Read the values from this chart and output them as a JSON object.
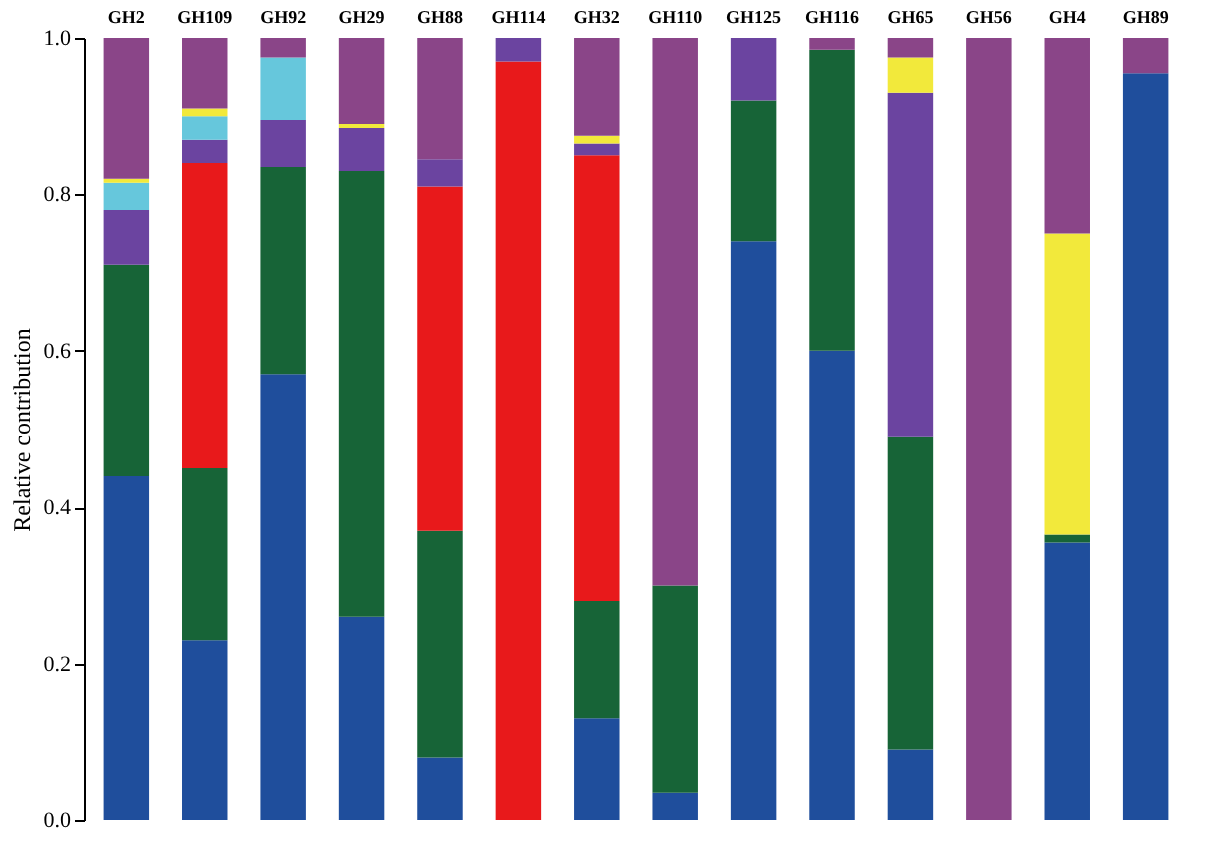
{
  "chart_data": {
    "type": "bar",
    "stacked": true,
    "ylabel": "Relative contribution",
    "categories": [
      "GH2",
      "GH109",
      "GH92",
      "GH29",
      "GH88",
      "GH114",
      "GH32",
      "GH110",
      "GH125",
      "GH116",
      "GH65",
      "GH56",
      "GH4",
      "GH89"
    ],
    "ylim": [
      0,
      1
    ],
    "yticks": [
      {
        "value": 0,
        "label": "0.0"
      },
      {
        "value": 0.2,
        "label": "0.2"
      },
      {
        "value": 0.4,
        "label": "0.4"
      },
      {
        "value": 0.6,
        "label": "0.6"
      },
      {
        "value": 0.8,
        "label": "0.8"
      },
      {
        "value": 1,
        "label": "1.0"
      }
    ],
    "grid": false,
    "series": [
      {
        "color": "#1f4e9c",
        "values": [
          0.44,
          0.23,
          0.57,
          0.26,
          0.08,
          0,
          0.13,
          0.035,
          0.74,
          0.6,
          0.09,
          0,
          0.355,
          0.955
        ]
      },
      {
        "color": "#176437",
        "values": [
          0.27,
          0.22,
          0.265,
          0.57,
          0.29,
          0,
          0.15,
          0.265,
          0.18,
          0.385,
          0.4,
          0,
          0.01,
          0
        ]
      },
      {
        "color": "#e8191b",
        "values": [
          0,
          0.39,
          0,
          0,
          0.44,
          0.97,
          0.57,
          0,
          0,
          0,
          0,
          0,
          0,
          0
        ]
      },
      {
        "color": "#6b44a0",
        "values": [
          0.07,
          0.03,
          0.06,
          0.055,
          0.035,
          0.03,
          0.015,
          0,
          0.08,
          0,
          0.44,
          0,
          0,
          0
        ]
      },
      {
        "color": "#66c7dc",
        "values": [
          0.035,
          0.03,
          0.08,
          0,
          0,
          0,
          0,
          0,
          0,
          0,
          0,
          0,
          0,
          0
        ]
      },
      {
        "color": "#f2e93b",
        "values": [
          0.005,
          0.01,
          0,
          0.005,
          0,
          0,
          0.01,
          0,
          0,
          0,
          0.045,
          0,
          0.385,
          0
        ]
      },
      {
        "color": "#8a4588",
        "values": [
          0.18,
          0.09,
          0.025,
          0.11,
          0.155,
          0,
          0.125,
          0.7,
          0,
          0.015,
          0.025,
          1,
          0.25,
          0.045
        ]
      }
    ]
  }
}
